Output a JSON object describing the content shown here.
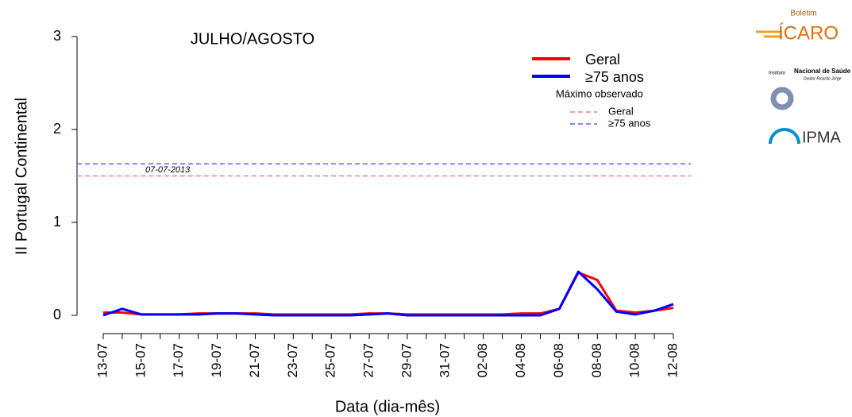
{
  "chart_data": {
    "type": "line",
    "title": "JULHO/AGOSTO",
    "ylabel": "II Portugal Continental",
    "xlabel": "Data (dia-mês)",
    "categories": [
      "13-07",
      null,
      "15-07",
      null,
      "17-07",
      null,
      "19-07",
      null,
      "21-07",
      null,
      "23-07",
      null,
      "25-07",
      null,
      "27-07",
      null,
      "29-07",
      null,
      "31-07",
      null,
      "02-08",
      null,
      "04-08",
      null,
      "06-08",
      null,
      "08-08",
      null,
      "10-08",
      null,
      "12-08"
    ],
    "series": [
      {
        "name": "Geral",
        "color": "#ff0000",
        "values": [
          0.03,
          0.03,
          0.01,
          0.01,
          0.01,
          0.02,
          0.02,
          0.02,
          0.02,
          0.01,
          0.01,
          0.01,
          0.01,
          0.01,
          0.02,
          0.02,
          0.01,
          0.01,
          0.01,
          0.01,
          0.01,
          0.01,
          0.02,
          0.02,
          0.07,
          0.46,
          0.38,
          0.05,
          0.03,
          0.05,
          0.08
        ]
      },
      {
        "name": "≥75 anos",
        "color": "#0000ff",
        "values": [
          0.0,
          0.07,
          0.01,
          0.01,
          0.01,
          0.01,
          0.02,
          0.02,
          0.01,
          0.0,
          0.0,
          0.0,
          0.0,
          0.0,
          0.01,
          0.02,
          0.0,
          0.0,
          0.0,
          0.0,
          0.0,
          0.0,
          0.0,
          0.0,
          0.07,
          0.47,
          0.28,
          0.04,
          0.01,
          0.05,
          0.12
        ]
      }
    ],
    "legend_title": "Máximo observado",
    "reference_lines": [
      {
        "name": "Geral",
        "color": "#f08080",
        "value": 1.5
      },
      {
        "name": "≥75 anos",
        "color": "#6060ff",
        "value": 1.63
      }
    ],
    "annotation": "07-07-2013",
    "ylim": [
      0,
      3
    ],
    "yticks": [
      0,
      1,
      2,
      3
    ],
    "logos": {
      "boletim": "Boletim",
      "icaro": "ÍCARO",
      "insa_prefix": "Instituto",
      "insa": "Nacional de Saúde",
      "insa_sub": "Doutor Ricardo Jorge",
      "ipma": "IPMA"
    }
  }
}
